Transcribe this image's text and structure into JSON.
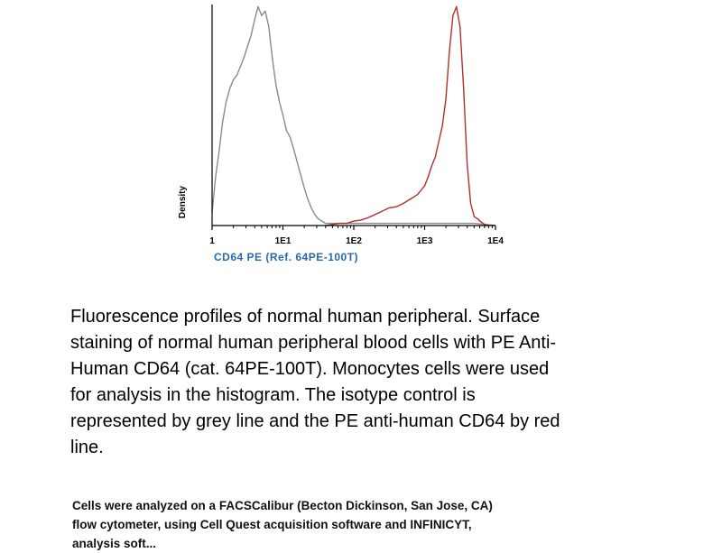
{
  "chart_data": {
    "type": "line",
    "xlabel": "CD64 PE (Ref. 64PE-100T)",
    "ylabel": "Density",
    "x_scale": "log",
    "xlim": [
      1,
      10000
    ],
    "ylim": [
      0,
      1
    ],
    "x_ticks": [
      1,
      10,
      100,
      1000,
      10000
    ],
    "x_tick_labels": [
      "1",
      "1E1",
      "1E2",
      "1E3",
      "1E4"
    ],
    "grid": false,
    "colors": {
      "isotype": "#8a8a8a",
      "cd64": "#b0302a",
      "axis": "#000000",
      "xlabel": "#2a6aa8"
    },
    "series": [
      {
        "color": "#8a8a8a",
        "x": [
          1,
          1.12,
          1.26,
          1.41,
          1.58,
          1.78,
          2,
          2.24,
          2.51,
          2.82,
          3.16,
          3.55,
          3.98,
          4.47,
          5.01,
          5.62,
          6.31,
          7.08,
          7.94,
          8.91,
          10,
          11.2,
          12.6,
          14.1,
          15.8,
          17.8,
          20,
          22.4,
          25.1,
          28.2,
          31.6,
          35.5,
          39.8,
          50,
          63,
          100,
          200,
          500,
          1000,
          2000,
          5000,
          10000
        ],
        "y": [
          0.06,
          0.22,
          0.34,
          0.47,
          0.56,
          0.62,
          0.66,
          0.68,
          0.72,
          0.76,
          0.81,
          0.86,
          0.93,
          0.99,
          0.95,
          0.97,
          0.9,
          0.76,
          0.64,
          0.56,
          0.5,
          0.43,
          0.4,
          0.35,
          0.29,
          0.23,
          0.17,
          0.12,
          0.08,
          0.05,
          0.03,
          0.02,
          0.01,
          0.01,
          0.01,
          0.01,
          0.01,
          0.01,
          0.01,
          0.01,
          0.01,
          0
        ]
      },
      {
        "color": "#b0302a",
        "x": [
          40,
          50,
          63,
          80,
          100,
          126,
          158,
          200,
          251,
          316,
          398,
          501,
          631,
          794,
          1000,
          1122,
          1259,
          1413,
          1585,
          1778,
          1995,
          2239,
          2512,
          2818,
          3162,
          3548,
          3981,
          4467,
          5012,
          5623,
          6310,
          7079,
          7943
        ],
        "y": [
          0.0,
          0.005,
          0.01,
          0.01,
          0.02,
          0.025,
          0.035,
          0.05,
          0.065,
          0.08,
          0.085,
          0.1,
          0.12,
          0.14,
          0.18,
          0.22,
          0.27,
          0.31,
          0.38,
          0.45,
          0.57,
          0.79,
          0.95,
          0.99,
          0.9,
          0.62,
          0.28,
          0.1,
          0.04,
          0.03,
          0.015,
          0.005,
          0.0
        ]
      }
    ]
  },
  "caption_lines": [
    "Fluorescence profiles of normal human peripheral. Surface",
    "staining of normal human peripheral blood cells with PE Anti-",
    "Human CD64  (cat. 64PE-100T). Monocytes cells  were used",
    "for analysis in the histogram.  The isotype control is",
    "represented by grey line and the PE anti-human CD64 by red",
    "line."
  ],
  "footnote_lines": [
    "Cells were analyzed on a FACSCalibur (Becton Dickinson, San Jose, CA)",
    "flow cytometer, using Cell Quest acquisition software and INFINICYT,",
    "analysis soft..."
  ]
}
